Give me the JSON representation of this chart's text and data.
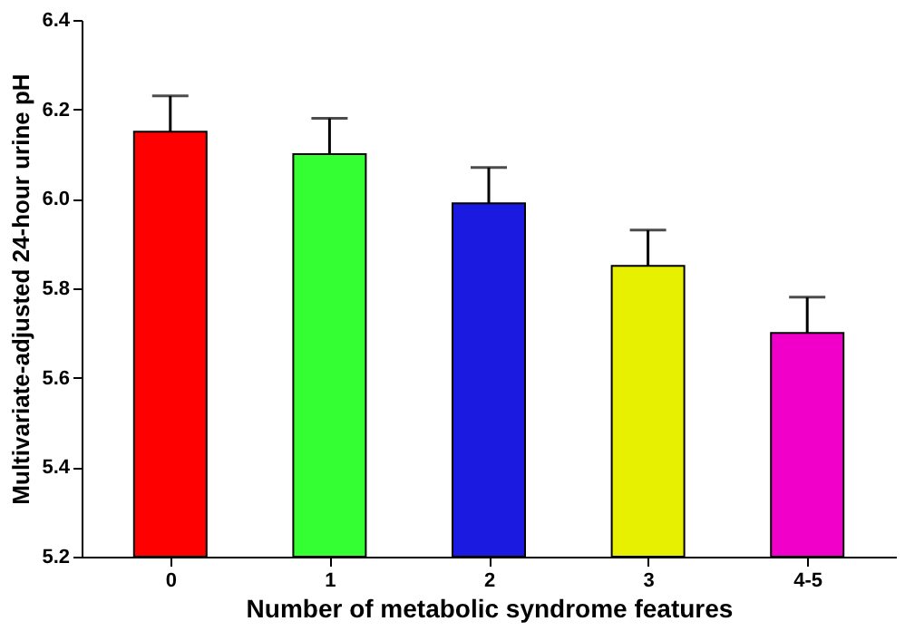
{
  "chart_data": {
    "type": "bar",
    "xlabel": "Number of metabolic syndrome features",
    "ylabel": "Multivariate-adjusted 24-hour urine pH",
    "categories": [
      "0",
      "1",
      "2",
      "3",
      "4-5"
    ],
    "values": [
      6.15,
      6.1,
      5.99,
      5.85,
      5.7
    ],
    "errors": [
      0.08,
      0.08,
      0.08,
      0.08,
      0.08
    ],
    "colors": [
      "#ff0000",
      "#33ff33",
      "#1a1ae0",
      "#e6f000",
      "#f000c8"
    ],
    "ylim": [
      5.2,
      6.4
    ],
    "yticks": [
      5.2,
      5.4,
      5.6,
      5.8,
      {
        "value": 6.0,
        "label": "6.0"
      },
      6.2,
      6.4
    ],
    "grid": false
  }
}
